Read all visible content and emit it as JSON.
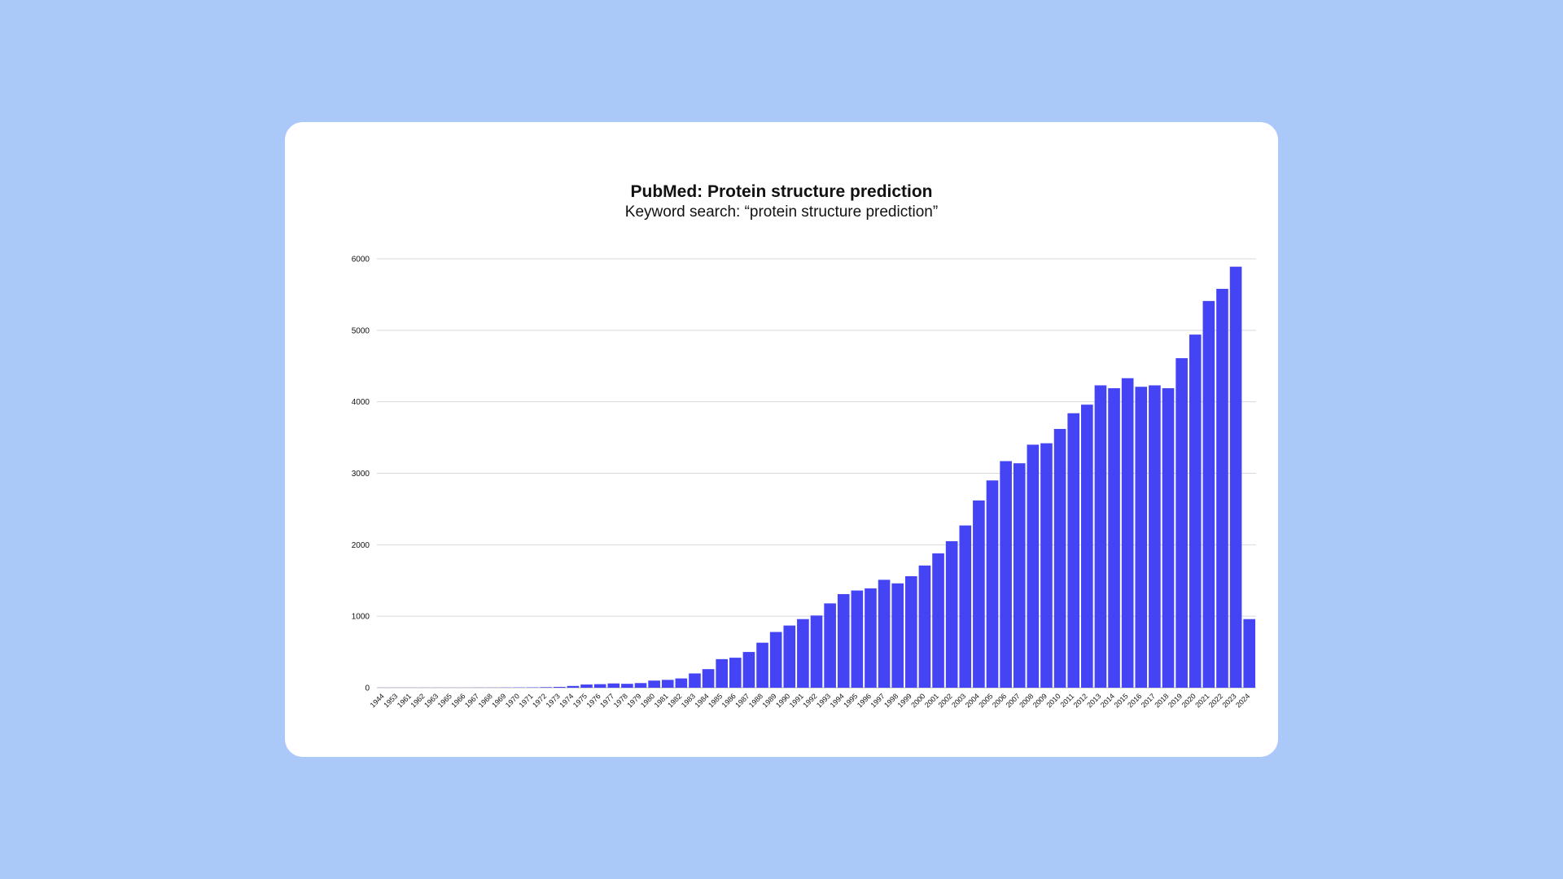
{
  "colors": {
    "background": "#aac9f9",
    "card": "#ffffff",
    "bar": "#4444f5",
    "grid": "#d9d9d9"
  },
  "chart_data": {
    "type": "bar",
    "title": "PubMed: Protein structure prediction",
    "subtitle": "Keyword search: “protein structure prediction”",
    "xlabel": "",
    "ylabel": "",
    "ylim": [
      0,
      6000
    ],
    "yticks": [
      0,
      1000,
      2000,
      3000,
      4000,
      5000,
      6000
    ],
    "grid": true,
    "categories": [
      "1944",
      "1953",
      "1961",
      "1962",
      "1963",
      "1965",
      "1966",
      "1967",
      "1968",
      "1969",
      "1970",
      "1971",
      "1972",
      "1973",
      "1974",
      "1975",
      "1976",
      "1977",
      "1978",
      "1979",
      "1980",
      "1981",
      "1982",
      "1983",
      "1984",
      "1985",
      "1986",
      "1987",
      "1988",
      "1989",
      "1990",
      "1991",
      "1992",
      "1993",
      "1994",
      "1995",
      "1996",
      "1997",
      "1998",
      "1999",
      "2000",
      "2001",
      "2002",
      "2003",
      "2004",
      "2005",
      "2006",
      "2007",
      "2008",
      "2009",
      "2010",
      "2011",
      "2012",
      "2013",
      "2014",
      "2015",
      "2016",
      "2017",
      "2018",
      "2019",
      "2020",
      "2021",
      "2022",
      "2023",
      "2024"
    ],
    "values": [
      1,
      1,
      1,
      1,
      1,
      1,
      1,
      2,
      2,
      3,
      4,
      5,
      8,
      12,
      25,
      45,
      50,
      60,
      55,
      65,
      100,
      110,
      130,
      200,
      260,
      400,
      420,
      500,
      630,
      780,
      870,
      960,
      1010,
      1180,
      1310,
      1360,
      1390,
      1510,
      1460,
      1560,
      1710,
      1880,
      2050,
      2270,
      2620,
      2900,
      3170,
      3140,
      3400,
      3420,
      3620,
      3840,
      3960,
      4230,
      4190,
      4330,
      4210,
      4230,
      4190,
      4610,
      4940,
      5410,
      5580,
      5890,
      960
    ]
  }
}
